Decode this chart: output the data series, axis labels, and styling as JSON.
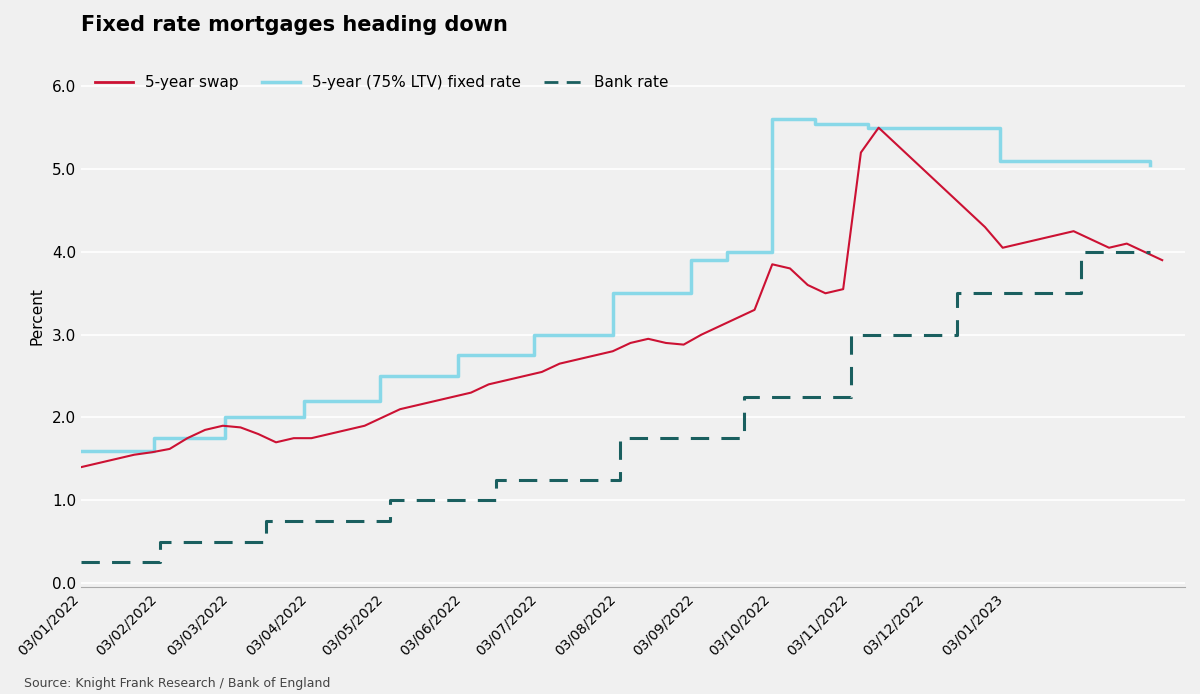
{
  "title": "Fixed rate mortgages heading down",
  "ylabel": "Percent",
  "source": "Source: Knight Frank Research / Bank of England",
  "background_color": "#f0f0f0",
  "ylim": [
    -0.05,
    6.5
  ],
  "yticks": [
    0.0,
    1.0,
    2.0,
    3.0,
    4.0,
    5.0,
    6.0
  ],
  "swap_color": "#cc1133",
  "fixed_color": "#88d8e8",
  "bank_color": "#1a5f5f",
  "bank_rate_dates": [
    "2022-01-03",
    "2022-02-03",
    "2022-03-17",
    "2022-05-05",
    "2022-06-16",
    "2022-08-04",
    "2022-09-22",
    "2022-11-03",
    "2022-12-15",
    "2023-02-02",
    "2023-03-01"
  ],
  "bank_rate_values": [
    0.25,
    0.5,
    0.75,
    1.0,
    1.25,
    1.75,
    2.25,
    3.0,
    3.5,
    4.0,
    4.0
  ],
  "fixed_rate_dates": [
    "2022-01-03",
    "2022-02-01",
    "2022-03-01",
    "2022-04-01",
    "2022-05-01",
    "2022-06-01",
    "2022-07-01",
    "2022-08-01",
    "2022-09-01",
    "2022-09-15",
    "2022-10-03",
    "2022-10-20",
    "2022-11-01",
    "2022-11-10",
    "2022-12-01",
    "2023-01-01",
    "2023-02-01",
    "2023-03-01"
  ],
  "fixed_rate_values": [
    1.6,
    1.75,
    2.0,
    2.2,
    2.5,
    2.75,
    3.0,
    3.5,
    3.9,
    4.0,
    5.6,
    5.55,
    5.55,
    5.5,
    5.5,
    5.1,
    5.1,
    5.05
  ],
  "swap_dates_monthly": [
    "2022-01-03",
    "2022-01-10",
    "2022-01-17",
    "2022-01-24",
    "2022-01-31",
    "2022-02-07",
    "2022-02-14",
    "2022-02-21",
    "2022-02-28",
    "2022-03-07",
    "2022-03-14",
    "2022-03-21",
    "2022-03-28",
    "2022-04-04",
    "2022-04-11",
    "2022-04-18",
    "2022-04-25",
    "2022-05-02",
    "2022-05-09",
    "2022-05-16",
    "2022-05-23",
    "2022-05-30",
    "2022-06-06",
    "2022-06-13",
    "2022-06-20",
    "2022-06-27",
    "2022-07-04",
    "2022-07-11",
    "2022-07-18",
    "2022-07-25",
    "2022-08-01",
    "2022-08-08",
    "2022-08-15",
    "2022-08-22",
    "2022-08-29",
    "2022-09-05",
    "2022-09-12",
    "2022-09-19",
    "2022-09-26",
    "2022-10-03",
    "2022-10-10",
    "2022-10-17",
    "2022-10-24",
    "2022-10-31",
    "2022-11-07",
    "2022-11-14",
    "2022-11-21",
    "2022-11-28",
    "2022-12-05",
    "2022-12-12",
    "2022-12-19",
    "2022-12-26",
    "2023-01-02",
    "2023-01-09",
    "2023-01-16",
    "2023-01-23",
    "2023-01-30",
    "2023-02-06",
    "2023-02-13",
    "2023-02-20",
    "2023-02-27",
    "2023-03-06"
  ],
  "swap_values": [
    1.4,
    1.45,
    1.5,
    1.55,
    1.58,
    1.62,
    1.75,
    1.85,
    1.9,
    1.88,
    1.8,
    1.7,
    1.75,
    1.75,
    1.8,
    1.85,
    1.9,
    2.0,
    2.1,
    2.15,
    2.2,
    2.25,
    2.3,
    2.4,
    2.45,
    2.5,
    2.55,
    2.65,
    2.7,
    2.75,
    2.8,
    2.9,
    2.95,
    2.9,
    2.88,
    3.0,
    3.1,
    3.2,
    3.3,
    3.85,
    3.8,
    3.6,
    3.5,
    3.55,
    5.2,
    5.5,
    5.3,
    5.1,
    4.9,
    4.7,
    4.5,
    4.3,
    4.05,
    4.1,
    4.15,
    4.2,
    4.25,
    4.15,
    4.05,
    4.1,
    4.0,
    3.9
  ]
}
